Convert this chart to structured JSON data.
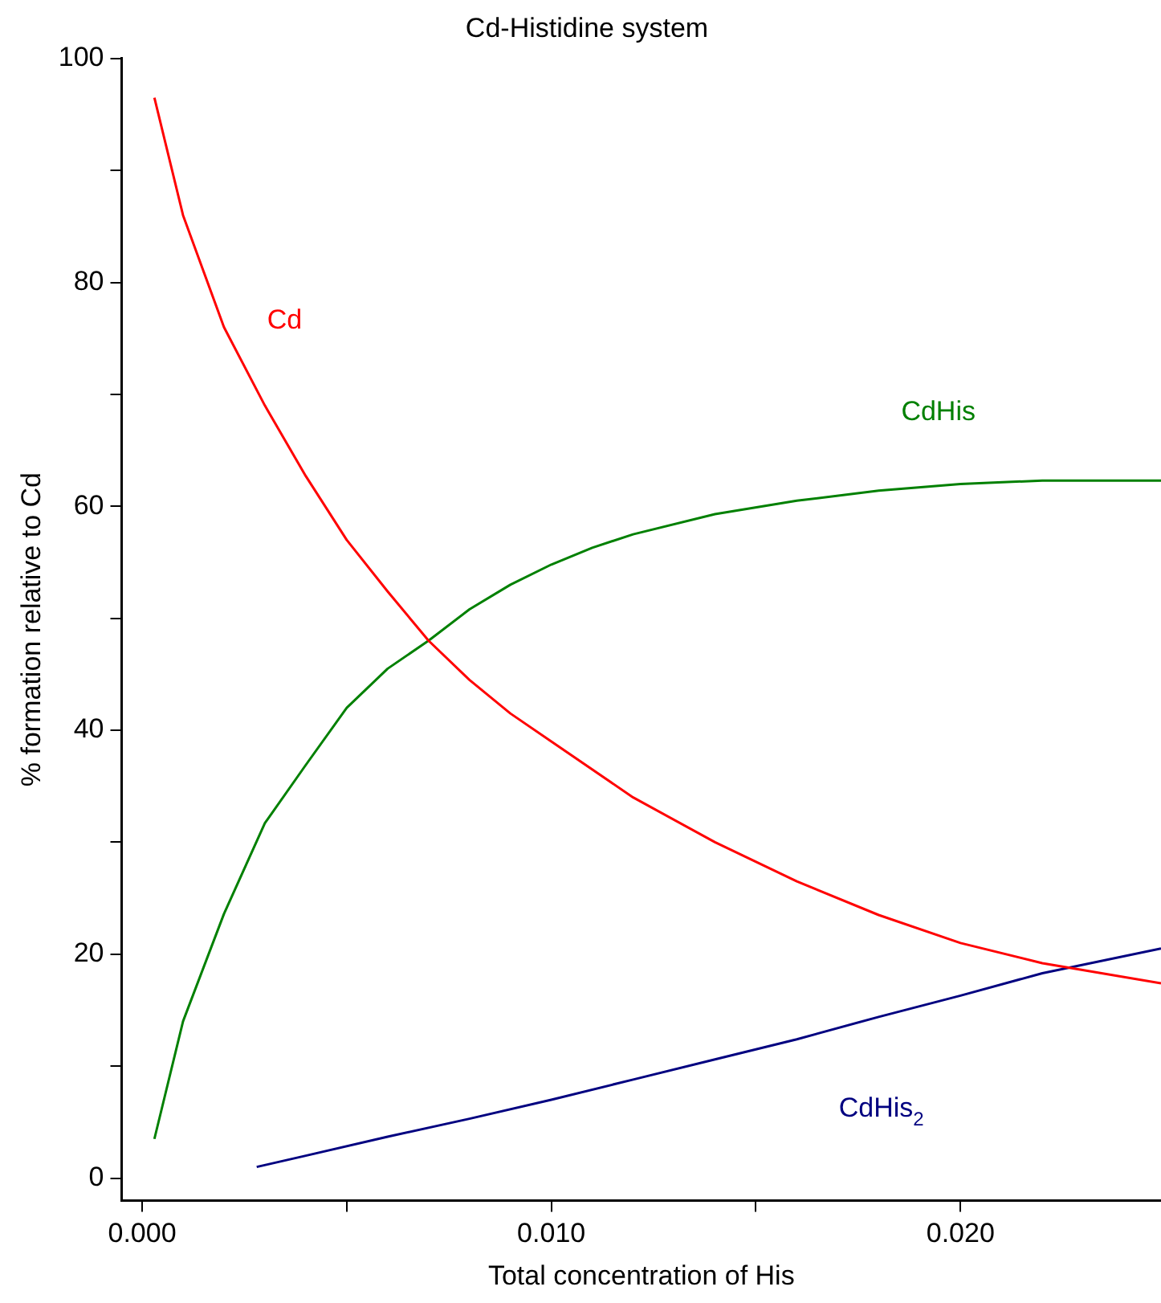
{
  "chart_data": {
    "type": "line",
    "title": "Cd-Histidine system",
    "xlabel": "Total concentration of His",
    "ylabel": "% formation relative to Cd",
    "xlim": [
      -0.0005,
      0.0249
    ],
    "ylim": [
      -2,
      100
    ],
    "xticks": [
      {
        "value": 0,
        "label": "0.000"
      },
      {
        "value": 0.005,
        "label": null
      },
      {
        "value": 0.01,
        "label": "0.010"
      },
      {
        "value": 0.015,
        "label": null
      },
      {
        "value": 0.02,
        "label": "0.020"
      }
    ],
    "yticks": [
      0,
      {
        "value": 10,
        "label": null
      },
      20,
      {
        "value": 30,
        "label": null
      },
      40,
      {
        "value": 50,
        "label": null
      },
      60,
      {
        "value": 70,
        "label": null
      },
      80,
      {
        "value": 90,
        "label": null
      },
      100
    ],
    "grid": false,
    "legend": false,
    "marker": "none",
    "line_style": "solid",
    "series": [
      {
        "name": "Cd",
        "color": "#ff0000",
        "x": [
          0.0003,
          0.001,
          0.002,
          0.003,
          0.004,
          0.005,
          0.006,
          0.007,
          0.008,
          0.009,
          0.01,
          0.012,
          0.014,
          0.016,
          0.018,
          0.02,
          0.022,
          0.0249
        ],
        "values": [
          96.5,
          86,
          76,
          69,
          62.7,
          57,
          52.4,
          48,
          44.5,
          41.5,
          39,
          34,
          30,
          26.5,
          23.5,
          21,
          19.2,
          17.4
        ]
      },
      {
        "name": "CdHis",
        "color": "#008000",
        "x": [
          0.0003,
          0.001,
          0.002,
          0.003,
          0.004,
          0.005,
          0.006,
          0.007,
          0.008,
          0.009,
          0.01,
          0.011,
          0.012,
          0.014,
          0.016,
          0.018,
          0.02,
          0.022,
          0.0249
        ],
        "values": [
          3.5,
          14,
          23.6,
          31.7,
          36.9,
          42,
          45.5,
          48,
          50.8,
          53,
          54.8,
          56.3,
          57.5,
          59.3,
          60.5,
          61.4,
          62,
          62.3,
          62.3
        ]
      },
      {
        "name": "CdHis$_{2}$",
        "color": "#000080",
        "x": [
          0.0028,
          0.004,
          0.006,
          0.008,
          0.01,
          0.012,
          0.014,
          0.016,
          0.018,
          0.02,
          0.022,
          0.0249
        ],
        "values": [
          1,
          2,
          3.7,
          5.3,
          7,
          8.8,
          10.6,
          12.4,
          14.4,
          16.3,
          18.3,
          20.5
        ]
      }
    ]
  }
}
